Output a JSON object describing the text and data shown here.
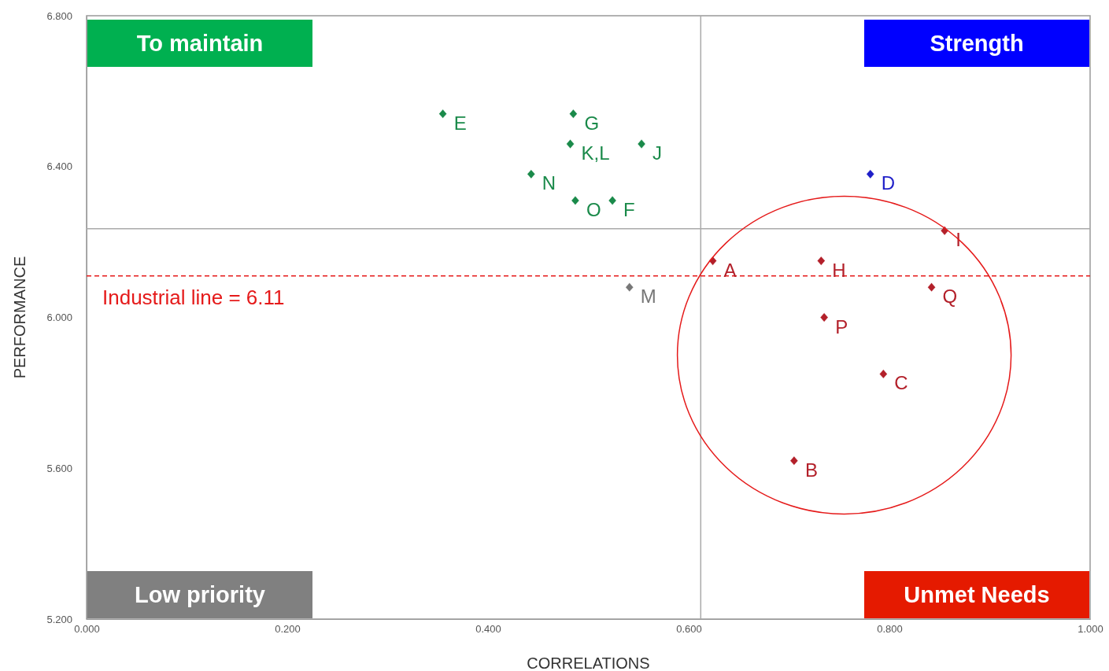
{
  "chart_data": {
    "type": "scatter",
    "xlabel": "CORRELATIONS",
    "ylabel": "PERFORMANCE",
    "marker": "diamond",
    "xlim": [
      0,
      1
    ],
    "ylim": [
      5.2,
      6.8
    ],
    "xticks": [
      {
        "value": 0,
        "label": "0.000"
      },
      {
        "value": 0.2,
        "label": "0.200"
      },
      {
        "value": 0.4,
        "label": "0.400"
      },
      {
        "value": 0.6,
        "label": "0.600"
      },
      {
        "value": 0.8,
        "label": "0.800"
      },
      {
        "value": 1,
        "label": "1.000"
      }
    ],
    "yticks": [
      {
        "value": 5.2,
        "label": "5.200"
      },
      {
        "value": 5.6,
        "label": "5.600"
      },
      {
        "value": 6.0,
        "label": "6.000"
      },
      {
        "value": 6.4,
        "label": "6.400"
      },
      {
        "value": 6.8,
        "label": "6.800"
      }
    ],
    "series": [
      {
        "color": "#1a8a4a",
        "x": [
          0.355,
          0.485,
          0.482,
          0.553,
          0.443,
          0.487,
          0.524
        ],
        "values": [
          6.54,
          6.54,
          6.46,
          6.46,
          6.38,
          6.31,
          6.31
        ],
        "value_labels": [
          "E",
          "G",
          "K,L",
          "J",
          "N",
          "O",
          "F"
        ]
      },
      {
        "color": "#1f1fc8",
        "x": [
          0.781
        ],
        "values": [
          6.38
        ],
        "value_labels": [
          "D"
        ]
      },
      {
        "color": "#b3202a",
        "x": [
          0.855,
          0.624,
          0.732,
          0.842,
          0.735,
          0.794,
          0.705
        ],
        "values": [
          6.23,
          6.15,
          6.15,
          6.08,
          6.0,
          5.85,
          5.62
        ],
        "value_labels": [
          "I",
          "A",
          "H",
          "Q",
          "P",
          "C",
          "B"
        ]
      },
      {
        "color": "#777777",
        "x": [
          0.541
        ],
        "values": [
          6.08
        ],
        "value_labels": [
          "M"
        ]
      }
    ],
    "ref_lines": [
      {
        "axis": "x",
        "value": 0.612,
        "color": "#aaaaaa",
        "line_style": "solid"
      },
      {
        "axis": "y",
        "value": 6.235,
        "color": "#aaaaaa",
        "line_style": "solid"
      },
      {
        "axis": "y",
        "value": 6.11,
        "label": "Industrial line = 6.11",
        "color": "#e51a1a",
        "line_style": "dashed"
      }
    ],
    "annotations": [
      "To maintain",
      "Strength",
      "Low priority",
      "Unmet Needs"
    ]
  }
}
